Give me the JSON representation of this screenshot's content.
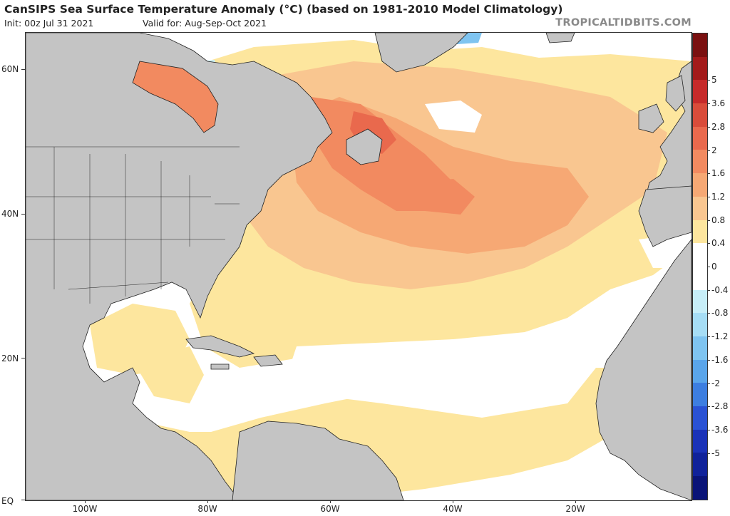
{
  "header": {
    "title": "CanSIPS Sea Surface Temperature Anomaly (°C) (based on 1981-2010 Model Climatology)",
    "init": "Init: 00z Jul 31 2021",
    "valid": "Valid for: Aug-Sep-Oct 2021",
    "brand": "TROPICALTIDBITS.COM"
  },
  "axes": {
    "lat_labels": [
      "60N",
      "40N",
      "20N",
      "EQ"
    ],
    "lon_labels": [
      "100W",
      "80W",
      "60W",
      "40W",
      "20W"
    ]
  },
  "colorbar": {
    "labels": [
      "5",
      "3.6",
      "2.8",
      "2",
      "1.6",
      "1.2",
      "0.8",
      "0.4",
      "0",
      "-0.4",
      "-0.8",
      "-1.2",
      "-1.6",
      "-2",
      "-2.8",
      "-3.6",
      "-5"
    ],
    "colors": [
      "#7a1010",
      "#a31a1a",
      "#c62a2a",
      "#d94c3a",
      "#e9694d",
      "#f28a60",
      "#f6a874",
      "#f9c690",
      "#fde69e",
      "#ffffff",
      "#ffffff",
      "#c7eef8",
      "#a6ddf5",
      "#7fc4f0",
      "#5aa5ea",
      "#3d7ee0",
      "#2a52d4",
      "#1a32b8",
      "#10229a",
      "#0a1478"
    ]
  },
  "legend_colors": {
    "land": "#c4c4c4",
    "ocean_neutral": "#ffffff",
    "anomaly_0_4": "#fde69e",
    "anomaly_0_8": "#f9c690",
    "anomaly_1_2": "#f6a874",
    "anomaly_1_6": "#f28a60",
    "anomaly_2": "#e9694d",
    "anomaly_2_8": "#d94c3a",
    "anomaly_neg_0_4": "#c7eef8",
    "anomaly_neg_1_2": "#7fc4f0"
  }
}
